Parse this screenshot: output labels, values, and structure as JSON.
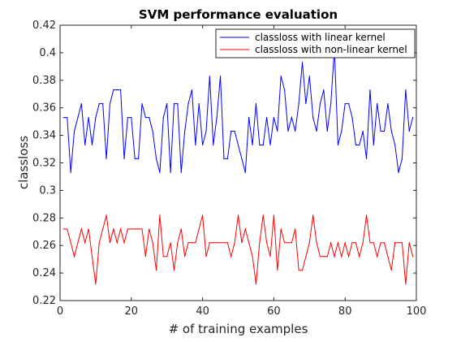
{
  "chart_data": {
    "type": "line",
    "title": "SVM performance evaluation",
    "xlabel": "# of training examples",
    "ylabel": "classloss",
    "xlim": [
      0,
      100
    ],
    "ylim": [
      0.22,
      0.42
    ],
    "xticks": [
      0,
      20,
      40,
      60,
      80,
      100
    ],
    "yticks": [
      0.22,
      0.24,
      0.26,
      0.28,
      0.3,
      0.32,
      0.34,
      0.36,
      0.38,
      0.4,
      0.42
    ],
    "ytick_labels": [
      "0.22",
      "0.24",
      "0.26",
      "0.28",
      "0.3",
      "0.32",
      "0.34",
      "0.36",
      "0.38",
      "0.4",
      "0.42"
    ],
    "xtick_labels": [
      "0",
      "20",
      "40",
      "60",
      "80",
      "100"
    ],
    "grid": false,
    "legend_position": "top-right",
    "x": [
      1,
      2,
      3,
      4,
      5,
      6,
      7,
      8,
      9,
      10,
      11,
      12,
      13,
      14,
      15,
      16,
      17,
      18,
      19,
      20,
      21,
      22,
      23,
      24,
      25,
      26,
      27,
      28,
      29,
      30,
      31,
      32,
      33,
      34,
      35,
      36,
      37,
      38,
      39,
      40,
      41,
      42,
      43,
      44,
      45,
      46,
      47,
      48,
      49,
      50,
      51,
      52,
      53,
      54,
      55,
      56,
      57,
      58,
      59,
      60,
      61,
      62,
      63,
      64,
      65,
      66,
      67,
      68,
      69,
      70,
      71,
      72,
      73,
      74,
      75,
      76,
      77,
      78,
      79,
      80,
      81,
      82,
      83,
      84,
      85,
      86,
      87,
      88,
      89,
      90,
      91,
      92,
      93,
      94,
      95,
      96,
      97,
      98,
      99
    ],
    "series": [
      {
        "name": "classloss with linear kernel",
        "color": "#0000ff",
        "values": [
          0.353,
          0.353,
          0.313,
          0.343,
          0.353,
          0.363,
          0.333,
          0.353,
          0.333,
          0.353,
          0.363,
          0.363,
          0.323,
          0.363,
          0.373,
          0.373,
          0.373,
          0.323,
          0.353,
          0.353,
          0.323,
          0.323,
          0.363,
          0.353,
          0.353,
          0.343,
          0.323,
          0.313,
          0.353,
          0.363,
          0.313,
          0.363,
          0.363,
          0.313,
          0.343,
          0.363,
          0.373,
          0.333,
          0.363,
          0.333,
          0.343,
          0.383,
          0.333,
          0.353,
          0.383,
          0.323,
          0.323,
          0.343,
          0.343,
          0.333,
          0.323,
          0.313,
          0.353,
          0.333,
          0.363,
          0.333,
          0.333,
          0.353,
          0.333,
          0.353,
          0.343,
          0.383,
          0.373,
          0.343,
          0.353,
          0.343,
          0.363,
          0.393,
          0.363,
          0.383,
          0.353,
          0.343,
          0.363,
          0.373,
          0.343,
          0.363,
          0.403,
          0.333,
          0.343,
          0.363,
          0.363,
          0.353,
          0.333,
          0.333,
          0.343,
          0.323,
          0.373,
          0.333,
          0.363,
          0.343,
          0.343,
          0.363,
          0.343,
          0.333,
          0.313,
          0.323,
          0.373,
          0.343,
          0.353
        ]
      },
      {
        "name": "classloss with non-linear kernel",
        "color": "#ff0000",
        "values": [
          0.272,
          0.272,
          0.262,
          0.252,
          0.262,
          0.272,
          0.262,
          0.272,
          0.252,
          0.232,
          0.262,
          0.272,
          0.282,
          0.262,
          0.272,
          0.262,
          0.272,
          0.262,
          0.272,
          0.272,
          0.272,
          0.272,
          0.272,
          0.252,
          0.272,
          0.262,
          0.242,
          0.282,
          0.252,
          0.252,
          0.262,
          0.242,
          0.262,
          0.272,
          0.252,
          0.262,
          0.262,
          0.262,
          0.272,
          0.282,
          0.252,
          0.262,
          0.262,
          0.262,
          0.262,
          0.262,
          0.262,
          0.252,
          0.262,
          0.282,
          0.262,
          0.272,
          0.262,
          0.252,
          0.232,
          0.262,
          0.282,
          0.262,
          0.252,
          0.282,
          0.242,
          0.272,
          0.262,
          0.262,
          0.262,
          0.272,
          0.242,
          0.242,
          0.252,
          0.262,
          0.282,
          0.262,
          0.252,
          0.252,
          0.252,
          0.262,
          0.252,
          0.262,
          0.252,
          0.262,
          0.252,
          0.262,
          0.262,
          0.252,
          0.262,
          0.282,
          0.262,
          0.262,
          0.252,
          0.262,
          0.262,
          0.252,
          0.242,
          0.262,
          0.262,
          0.262,
          0.232,
          0.262,
          0.252
        ]
      }
    ]
  }
}
